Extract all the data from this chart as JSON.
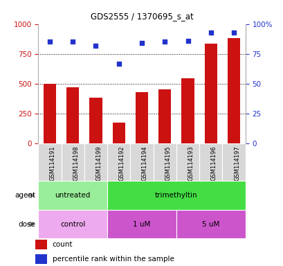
{
  "title": "GDS2555 / 1370695_s_at",
  "samples": [
    "GSM114191",
    "GSM114198",
    "GSM114199",
    "GSM114192",
    "GSM114194",
    "GSM114195",
    "GSM114193",
    "GSM114196",
    "GSM114197"
  ],
  "bar_values": [
    498,
    470,
    385,
    175,
    430,
    455,
    545,
    835,
    880
  ],
  "dot_values": [
    85,
    85,
    82,
    67,
    84,
    85,
    86,
    93,
    93
  ],
  "bar_color": "#cc1111",
  "dot_color": "#2233cc",
  "ylim_left": [
    0,
    1000
  ],
  "ylim_right": [
    0,
    100
  ],
  "yticks_left": [
    0,
    250,
    500,
    750,
    1000
  ],
  "yticks_right": [
    0,
    25,
    50,
    75,
    100
  ],
  "yticklabels_right": [
    "0",
    "25",
    "50",
    "75",
    "100%"
  ],
  "agent_groups": [
    {
      "label": "untreated",
      "start": 0,
      "end": 3,
      "color": "#99ee99"
    },
    {
      "label": "trimethyltin",
      "start": 3,
      "end": 9,
      "color": "#44dd44"
    }
  ],
  "dose_groups": [
    {
      "label": "control",
      "start": 0,
      "end": 3,
      "color": "#ee99ee"
    },
    {
      "label": "1 uM",
      "start": 3,
      "end": 6,
      "color": "#cc55cc"
    },
    {
      "label": "5 uM",
      "start": 6,
      "end": 9,
      "color": "#cc55cc"
    }
  ],
  "legend_count_label": "count",
  "legend_pct_label": "percentile rank within the sample",
  "xlabel_agent": "agent",
  "xlabel_dose": "dose",
  "plot_bg": "#ffffff",
  "tick_label_color_left": "#cc1111",
  "tick_label_color_right": "#2233cc",
  "xtick_bg": "#d8d8d8",
  "xtick_border": "#aaaaaa"
}
